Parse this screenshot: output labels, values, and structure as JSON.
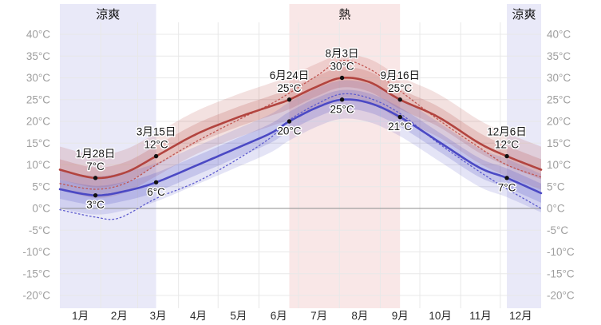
{
  "chart_data": {
    "type": "line",
    "title": "",
    "unit": "°C",
    "y_ticks": [
      {
        "v": 40,
        "label": "40°C"
      },
      {
        "v": 35,
        "label": "35°C"
      },
      {
        "v": 30,
        "label": "30°C"
      },
      {
        "v": 25,
        "label": "25°C"
      },
      {
        "v": 20,
        "label": "20°C"
      },
      {
        "v": 15,
        "label": "15°C"
      },
      {
        "v": 10,
        "label": "10°C"
      },
      {
        "v": 5,
        "label": "5°C"
      },
      {
        "v": 0,
        "label": "0°C"
      },
      {
        "v": -5,
        "label": "-5°C"
      },
      {
        "v": -10,
        "label": "-10°C"
      },
      {
        "v": -15,
        "label": "-15°C"
      },
      {
        "v": -20,
        "label": "-20°C"
      }
    ],
    "months": [
      {
        "label": "1月",
        "days": 31
      },
      {
        "label": "2月",
        "days": 28
      },
      {
        "label": "3月",
        "days": 31
      },
      {
        "label": "4月",
        "days": 30
      },
      {
        "label": "5月",
        "days": 31
      },
      {
        "label": "6月",
        "days": 30
      },
      {
        "label": "7月",
        "days": 31
      },
      {
        "label": "8月",
        "days": 31
      },
      {
        "label": "9月",
        "days": 30
      },
      {
        "label": "10月",
        "days": 31
      },
      {
        "label": "11月",
        "days": 30
      },
      {
        "label": "12月",
        "days": 31
      }
    ],
    "seasons": [
      {
        "label": "涼爽",
        "start_day": 0,
        "end_day": 73,
        "color": "#e9e9f8"
      },
      {
        "label": "熱",
        "start_day": 174,
        "end_day": 258,
        "color": "#f9e7e7"
      },
      {
        "label": "涼爽",
        "start_day": 339,
        "end_day": 365,
        "color": "#e9e9f8"
      }
    ],
    "series": [
      {
        "key": "high",
        "style": "solid",
        "color": "#b2443f",
        "width": 2.6,
        "points": [
          [
            0,
            8.9
          ],
          [
            27,
            7
          ],
          [
            50,
            8.3
          ],
          [
            73,
            12
          ],
          [
            103,
            17
          ],
          [
            133,
            20.7
          ],
          [
            160,
            23.5
          ],
          [
            174,
            25
          ],
          [
            195,
            28
          ],
          [
            214,
            30
          ],
          [
            235,
            29
          ],
          [
            258,
            25
          ],
          [
            287,
            21
          ],
          [
            318,
            15
          ],
          [
            339,
            12
          ],
          [
            365,
            8.9
          ]
        ]
      },
      {
        "key": "low",
        "style": "solid",
        "color": "#4b49c4",
        "width": 2.6,
        "points": [
          [
            0,
            4.4
          ],
          [
            27,
            3
          ],
          [
            50,
            4
          ],
          [
            73,
            6
          ],
          [
            103,
            9.8
          ],
          [
            133,
            13.7
          ],
          [
            160,
            17.3
          ],
          [
            174,
            20
          ],
          [
            195,
            23.2
          ],
          [
            214,
            25
          ],
          [
            235,
            24.2
          ],
          [
            258,
            21
          ],
          [
            287,
            15.4
          ],
          [
            318,
            9.4
          ],
          [
            339,
            7
          ],
          [
            365,
            3.5
          ]
        ]
      },
      {
        "key": "perceived_high",
        "style": "dotted",
        "color": "#c05550",
        "width": 1.3,
        "points": [
          [
            0,
            5.7
          ],
          [
            27,
            4.4
          ],
          [
            50,
            5.8
          ],
          [
            73,
            10
          ],
          [
            103,
            15.3
          ],
          [
            133,
            20
          ],
          [
            160,
            24
          ],
          [
            174,
            26.5
          ],
          [
            195,
            30.5
          ],
          [
            214,
            34
          ],
          [
            235,
            32
          ],
          [
            258,
            27
          ],
          [
            287,
            20.4
          ],
          [
            318,
            14
          ],
          [
            339,
            10
          ],
          [
            365,
            7.2
          ]
        ]
      },
      {
        "key": "perceived_low",
        "style": "dotted",
        "color": "#5c5ace",
        "width": 1.3,
        "points": [
          [
            0,
            -0.3
          ],
          [
            27,
            -2
          ],
          [
            45,
            -2.2
          ],
          [
            73,
            2.3
          ],
          [
            103,
            6
          ],
          [
            133,
            11
          ],
          [
            160,
            16.3
          ],
          [
            174,
            20.3
          ],
          [
            195,
            24
          ],
          [
            214,
            26.3
          ],
          [
            235,
            25.3
          ],
          [
            258,
            21.8
          ],
          [
            287,
            15
          ],
          [
            318,
            8.5
          ],
          [
            339,
            4.5
          ],
          [
            365,
            0
          ]
        ]
      }
    ],
    "bands": [
      {
        "base": "high",
        "up": 5.3,
        "down": 4.6,
        "fill": "rgba(178,68,64,0.16)"
      },
      {
        "base": "high",
        "up": 2.4,
        "down": 2.2,
        "fill": "rgba(178,68,64,0.20)"
      },
      {
        "base": "low",
        "up": 4.4,
        "down": 4.4,
        "fill": "rgba(75,73,196,0.15)"
      },
      {
        "base": "low",
        "up": 2.2,
        "down": 2.2,
        "fill": "rgba(75,73,196,0.20)"
      }
    ],
    "annotations": {
      "high": [
        {
          "day": 27,
          "date_label": "1月28日",
          "temp": 7,
          "temp_label": "7°C"
        },
        {
          "day": 73,
          "date_label": "3月15日",
          "temp": 12,
          "temp_label": "12°C"
        },
        {
          "day": 174,
          "date_label": "6月24日",
          "temp": 25,
          "temp_label": "25°C"
        },
        {
          "day": 214,
          "date_label": "8月3日",
          "temp": 30,
          "temp_label": "30°C"
        },
        {
          "day": 258,
          "date_label": "9月16日",
          "temp": 25,
          "temp_label": "25°C"
        },
        {
          "day": 339,
          "date_label": "12月6日",
          "temp": 12,
          "temp_label": "12°C"
        }
      ],
      "low": [
        {
          "day": 27,
          "temp": 3,
          "temp_label": "3°C"
        },
        {
          "day": 73,
          "temp": 6,
          "temp_label": "6°C"
        },
        {
          "day": 174,
          "temp": 20,
          "temp_label": "20°C"
        },
        {
          "day": 214,
          "temp": 25,
          "temp_label": "25°C"
        },
        {
          "day": 258,
          "temp": 21,
          "temp_label": "21°C"
        },
        {
          "day": 339,
          "temp": 7,
          "temp_label": "7°C"
        }
      ]
    },
    "colors": {
      "high_line": "#b2443f",
      "low_line": "#4b49c4",
      "cool_band": "#e9e9f8",
      "hot_band": "#f9e7e7",
      "grid": "#e8e8e8",
      "zero_line": "#8c8c8c",
      "axis_text": "#9e9e9e",
      "month_text": "#2b2b2b",
      "marker": "#111111"
    },
    "axis_range": {
      "y_min": -20,
      "y_max": 40,
      "x_days": 365
    },
    "grid": true,
    "legend_position": "none"
  }
}
